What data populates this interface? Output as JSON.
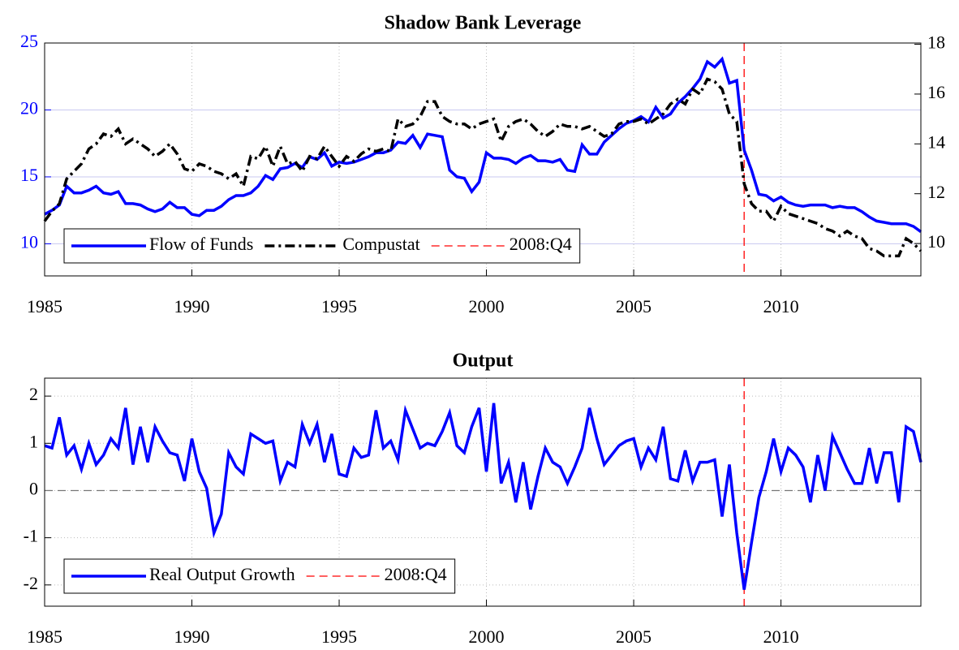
{
  "chart_data": [
    {
      "type": "line",
      "title": "Shadow Bank Leverage",
      "x": [
        1985,
        1985.25,
        1985.5,
        1985.75,
        1986,
        1986.25,
        1986.5,
        1986.75,
        1987,
        1987.25,
        1987.5,
        1987.75,
        1988,
        1988.25,
        1988.5,
        1988.75,
        1989,
        1989.25,
        1989.5,
        1989.75,
        1990,
        1990.25,
        1990.5,
        1990.75,
        1991,
        1991.25,
        1991.5,
        1991.75,
        1992,
        1992.25,
        1992.5,
        1992.75,
        1993,
        1993.25,
        1993.5,
        1993.75,
        1994,
        1994.25,
        1994.5,
        1994.75,
        1995,
        1995.25,
        1995.5,
        1995.75,
        1996,
        1996.25,
        1996.5,
        1996.75,
        1997,
        1997.25,
        1997.5,
        1997.75,
        1998,
        1998.25,
        1998.5,
        1998.75,
        1999,
        1999.25,
        1999.5,
        1999.75,
        2000,
        2000.25,
        2000.5,
        2000.75,
        2001,
        2001.25,
        2001.5,
        2001.75,
        2002,
        2002.25,
        2002.5,
        2002.75,
        2003,
        2003.25,
        2003.5,
        2003.75,
        2004,
        2004.25,
        2004.5,
        2004.75,
        2005,
        2005.25,
        2005.5,
        2005.75,
        2006,
        2006.25,
        2006.5,
        2006.75,
        2007,
        2007.25,
        2007.5,
        2007.75,
        2008,
        2008.25,
        2008.5,
        2008.75,
        2009,
        2009.25,
        2009.5,
        2009.75,
        2010,
        2010.25,
        2010.5,
        2010.75,
        2011,
        2011.25,
        2011.5,
        2011.75,
        2012,
        2012.25,
        2012.5,
        2012.75,
        2013,
        2013.25,
        2013.5,
        2013.75,
        2014,
        2014.25,
        2014.5,
        2014.75
      ],
      "xlim": [
        1985,
        2014.75
      ],
      "xticks": [
        1985,
        1990,
        1995,
        2000,
        2005,
        2010
      ],
      "ylim": [
        7.6,
        25
      ],
      "yticks": [
        10,
        15,
        20,
        25
      ],
      "ycolor": "#0000ff",
      "y2lim": [
        8.7,
        18.05
      ],
      "y2ticks": [
        10,
        12,
        14,
        16,
        18
      ],
      "grid": true,
      "legend": "lower left",
      "vline": {
        "value": 2008.75,
        "label": "2008:Q4",
        "color": "#ff0000"
      },
      "series": [
        {
          "name": "Flow of Funds",
          "color": "#0000ff",
          "dash": "solid",
          "values": [
            12.2,
            12.5,
            12.9,
            14.3,
            13.8,
            13.8,
            14.0,
            14.3,
            13.8,
            13.7,
            13.9,
            13.0,
            13.0,
            12.9,
            12.6,
            12.4,
            12.6,
            13.1,
            12.7,
            12.7,
            12.2,
            12.1,
            12.5,
            12.5,
            12.8,
            13.3,
            13.6,
            13.6,
            13.8,
            14.3,
            15.1,
            14.8,
            15.6,
            15.7,
            16.0,
            15.7,
            16.5,
            16.3,
            16.8,
            15.8,
            16.1,
            16.0,
            16.1,
            16.3,
            16.5,
            16.8,
            16.8,
            17.0,
            17.6,
            17.5,
            18.1,
            17.2,
            18.2,
            18.1,
            18.0,
            15.5,
            15.0,
            14.9,
            13.9,
            14.6,
            16.8,
            16.4,
            16.4,
            16.3,
            16.0,
            16.4,
            16.6,
            16.2,
            16.2,
            16.1,
            16.3,
            15.5,
            15.4,
            17.4,
            16.7,
            16.7,
            17.6,
            18.1,
            18.6,
            19.0,
            19.2,
            19.5,
            19.1,
            20.2,
            19.4,
            19.7,
            20.5,
            21.0,
            21.6,
            22.3,
            23.6,
            23.2,
            23.8,
            22.0,
            22.2,
            17.0,
            15.5,
            13.7,
            13.6,
            13.2,
            13.5,
            13.1,
            12.9,
            12.8,
            12.9,
            12.9,
            12.9,
            12.7,
            12.8,
            12.7,
            12.7,
            12.4,
            12.0,
            11.7,
            11.6,
            11.5,
            11.5,
            11.5,
            11.3,
            10.9
          ]
        },
        {
          "name": "Compustat",
          "color": "#000000",
          "dash": "dashdot",
          "axis": "y2",
          "values": [
            10.9,
            11.3,
            11.6,
            12.6,
            12.9,
            13.2,
            13.8,
            14.0,
            14.4,
            14.3,
            14.6,
            14.0,
            14.2,
            14.0,
            13.8,
            13.5,
            13.7,
            14.0,
            13.6,
            13.0,
            12.9,
            13.2,
            13.1,
            12.9,
            12.8,
            12.6,
            12.8,
            12.3,
            13.5,
            13.4,
            13.9,
            13.1,
            13.9,
            13.2,
            13.3,
            12.9,
            13.5,
            13.4,
            13.9,
            13.5,
            13.1,
            13.5,
            13.3,
            13.6,
            13.8,
            13.7,
            13.8,
            13.7,
            15.0,
            14.7,
            14.8,
            15.1,
            15.7,
            15.7,
            15.1,
            14.9,
            14.8,
            14.8,
            14.6,
            14.8,
            14.9,
            15.0,
            14.1,
            14.7,
            14.9,
            15.0,
            14.8,
            14.5,
            14.3,
            14.5,
            14.8,
            14.7,
            14.7,
            14.6,
            14.7,
            14.5,
            14.3,
            14.4,
            14.8,
            14.9,
            14.9,
            15.0,
            14.8,
            15.0,
            15.2,
            15.6,
            15.8,
            15.6,
            16.2,
            16.0,
            16.6,
            16.5,
            16.2,
            15.2,
            14.9,
            12.4,
            11.6,
            11.3,
            11.3,
            10.9,
            11.5,
            11.2,
            11.1,
            11.0,
            10.9,
            10.8,
            10.6,
            10.5,
            10.3,
            10.5,
            10.3,
            10.2,
            9.8,
            9.7,
            9.5,
            9.5,
            9.5,
            10.2,
            10.0,
            9.7
          ]
        }
      ]
    },
    {
      "type": "line",
      "title": "Output",
      "x": [
        1985,
        1985.25,
        1985.5,
        1985.75,
        1986,
        1986.25,
        1986.5,
        1986.75,
        1987,
        1987.25,
        1987.5,
        1987.75,
        1988,
        1988.25,
        1988.5,
        1988.75,
        1989,
        1989.25,
        1989.5,
        1989.75,
        1990,
        1990.25,
        1990.5,
        1990.75,
        1991,
        1991.25,
        1991.5,
        1991.75,
        1992,
        1992.25,
        1992.5,
        1992.75,
        1993,
        1993.25,
        1993.5,
        1993.75,
        1994,
        1994.25,
        1994.5,
        1994.75,
        1995,
        1995.25,
        1995.5,
        1995.75,
        1996,
        1996.25,
        1996.5,
        1996.75,
        1997,
        1997.25,
        1997.5,
        1997.75,
        1998,
        1998.25,
        1998.5,
        1998.75,
        1999,
        1999.25,
        1999.5,
        1999.75,
        2000,
        2000.25,
        2000.5,
        2000.75,
        2001,
        2001.25,
        2001.5,
        2001.75,
        2002,
        2002.25,
        2002.5,
        2002.75,
        2003,
        2003.25,
        2003.5,
        2003.75,
        2004,
        2004.25,
        2004.5,
        2004.75,
        2005,
        2005.25,
        2005.5,
        2005.75,
        2006,
        2006.25,
        2006.5,
        2006.75,
        2007,
        2007.25,
        2007.5,
        2007.75,
        2008,
        2008.25,
        2008.5,
        2008.75,
        2009,
        2009.25,
        2009.5,
        2009.75,
        2010,
        2010.25,
        2010.5,
        2010.75,
        2011,
        2011.25,
        2011.5,
        2011.75,
        2012,
        2012.25,
        2012.5,
        2012.75,
        2013,
        2013.25,
        2013.5,
        2013.75,
        2014,
        2014.25,
        2014.5,
        2014.75
      ],
      "xlim": [
        1985,
        2014.75
      ],
      "xticks": [
        1985,
        1990,
        1995,
        2000,
        2005,
        2010
      ],
      "ylim": [
        -2.45,
        2.38
      ],
      "yticks": [
        -2,
        -1,
        0,
        1,
        2
      ],
      "grid": true,
      "legend": "lower left",
      "hline": 0,
      "vline": {
        "value": 2008.75,
        "label": "2008:Q4",
        "color": "#ff0000"
      },
      "series": [
        {
          "name": "Real Output Growth",
          "color": "#0000ff",
          "dash": "solid",
          "values": [
            0.95,
            0.9,
            1.55,
            0.75,
            0.95,
            0.45,
            1.0,
            0.55,
            0.75,
            1.1,
            0.9,
            1.75,
            0.55,
            1.35,
            0.6,
            1.35,
            1.05,
            0.8,
            0.75,
            0.2,
            1.1,
            0.4,
            0.05,
            -0.9,
            -0.5,
            0.8,
            0.5,
            0.35,
            1.2,
            1.1,
            1.0,
            1.05,
            0.2,
            0.6,
            0.5,
            1.4,
            1.0,
            1.4,
            0.6,
            1.2,
            0.35,
            0.3,
            0.9,
            0.7,
            0.75,
            1.7,
            0.9,
            1.05,
            0.65,
            1.7,
            1.3,
            0.9,
            1.0,
            0.95,
            1.25,
            1.65,
            0.95,
            0.8,
            1.35,
            1.75,
            0.4,
            1.85,
            0.15,
            0.6,
            -0.25,
            0.6,
            -0.4,
            0.3,
            0.9,
            0.6,
            0.5,
            0.15,
            0.5,
            0.9,
            1.75,
            1.1,
            0.55,
            0.75,
            0.95,
            1.05,
            1.1,
            0.5,
            0.9,
            0.65,
            1.35,
            0.25,
            0.2,
            0.85,
            0.2,
            0.6,
            0.6,
            0.65,
            -0.55,
            0.55,
            -0.9,
            -2.1,
            -1.1,
            -0.15,
            0.4,
            1.1,
            0.4,
            0.9,
            0.75,
            0.5,
            -0.25,
            0.75,
            0,
            1.15,
            0.8,
            0.45,
            0.15,
            0.15,
            0.9,
            0.15,
            0.8,
            0.8,
            -0.25,
            1.35,
            1.25,
            0.6
          ]
        }
      ]
    }
  ]
}
